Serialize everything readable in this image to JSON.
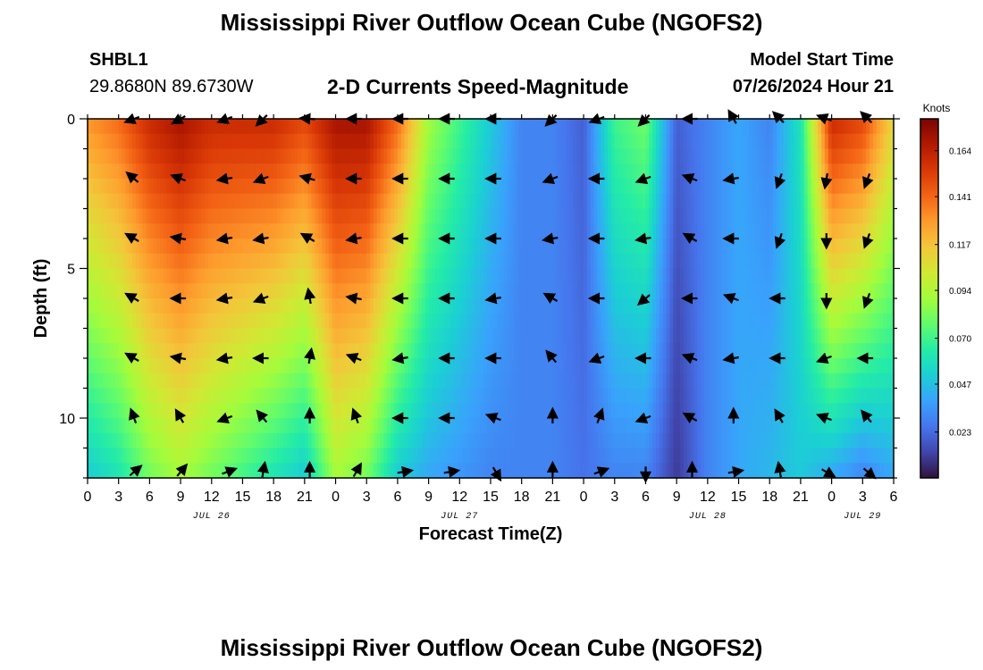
{
  "header": {
    "title": "Mississippi River Outflow Ocean Cube (NGOFS2)",
    "station_id": "SHBL1",
    "station_coords": "29.8680N  89.6730W",
    "model_start_label": "Model Start Time",
    "model_start_value": "07/26/2024 Hour 21"
  },
  "footer": {
    "title": "Mississippi River Outflow Ocean Cube (NGOFS2)"
  },
  "colors": {
    "colormap": [
      "#30123b",
      "#4145ab",
      "#4675ed",
      "#39a2fc",
      "#1bcfd4",
      "#24eca6",
      "#61fc6c",
      "#a4fc3b",
      "#d1e834",
      "#f3c63a",
      "#fe9b2d",
      "#f36315",
      "#d93806",
      "#b11901",
      "#7a0403"
    ]
  },
  "chart_data": {
    "type": "heatmap",
    "title": "2-D Currents Speed-Magnitude",
    "xlabel": "Forecast Time(Z)",
    "ylabel": "Depth (ft)",
    "x_tick_labels": [
      "0",
      "3",
      "6",
      "9",
      "12",
      "15",
      "18",
      "21",
      "0",
      "3",
      "6",
      "9",
      "12",
      "15",
      "18",
      "21",
      "0",
      "3",
      "6",
      "9",
      "12",
      "15",
      "18",
      "21",
      "0",
      "3",
      "6"
    ],
    "x_range_hours": [
      0,
      78
    ],
    "date_labels": [
      {
        "text": "JUL 26",
        "hour": 12
      },
      {
        "text": "JUL 27",
        "hour": 36
      },
      {
        "text": "JUL 28",
        "hour": 60
      },
      {
        "text": "JUL 29",
        "hour": 75
      }
    ],
    "y_tick_labels": [
      "0",
      "5",
      "10"
    ],
    "y_tick_values": [
      0,
      5,
      10
    ],
    "ylim": [
      0,
      12
    ],
    "colorbar": {
      "label": "Knots",
      "range": [
        0.0,
        0.18
      ],
      "ticks": [
        0.023,
        0.047,
        0.07,
        0.094,
        0.117,
        0.141,
        0.164
      ],
      "tick_labels": [
        "0.023",
        "0.047",
        "0.070",
        "0.094",
        "0.117",
        "0.141",
        "0.164"
      ]
    },
    "speed_time_hours": [
      0,
      3,
      6,
      9,
      12,
      15,
      18,
      21,
      24,
      27,
      30,
      33,
      36,
      39,
      42,
      45,
      48,
      51,
      54,
      57,
      60,
      63,
      66,
      69,
      72,
      75,
      78
    ],
    "speed_surface": [
      0.13,
      0.14,
      0.16,
      0.17,
      0.16,
      0.16,
      0.16,
      0.15,
      0.17,
      0.17,
      0.14,
      0.09,
      0.07,
      0.05,
      0.03,
      0.03,
      0.02,
      0.07,
      0.08,
      0.02,
      0.03,
      0.04,
      0.03,
      0.06,
      0.16,
      0.15,
      0.11
    ],
    "speed_bottom": [
      0.05,
      0.06,
      0.08,
      0.09,
      0.08,
      0.07,
      0.06,
      0.05,
      0.09,
      0.08,
      0.05,
      0.04,
      0.035,
      0.03,
      0.03,
      0.03,
      0.025,
      0.03,
      0.03,
      0.01,
      0.03,
      0.04,
      0.045,
      0.05,
      0.04,
      0.03,
      0.04
    ],
    "depth_shape": [
      0.0,
      0.12,
      0.25,
      0.37,
      0.5,
      0.62,
      0.75,
      0.87,
      1.0
    ],
    "arrow_depths_ft": [
      0,
      2,
      4,
      6,
      8,
      10,
      11.8
    ],
    "arrow_times_hours": [
      4.5,
      9,
      13.5,
      17,
      21.5,
      26,
      30.5,
      35,
      39.5,
      45,
      49.5,
      54,
      58.5,
      62.5,
      67,
      71.5,
      75.5
    ],
    "arrow_angles_deg": [
      [
        200,
        210,
        200,
        225,
        175,
        180,
        180,
        180,
        180,
        225,
        200,
        225,
        180,
        120,
        135,
        160,
        135
      ],
      [
        140,
        160,
        190,
        200,
        165,
        180,
        180,
        180,
        180,
        200,
        180,
        200,
        160,
        190,
        250,
        260,
        250
      ],
      [
        150,
        170,
        190,
        190,
        150,
        190,
        180,
        180,
        180,
        190,
        180,
        190,
        150,
        180,
        250,
        270,
        250
      ],
      [
        150,
        180,
        190,
        200,
        100,
        170,
        180,
        180,
        190,
        150,
        180,
        220,
        180,
        160,
        180,
        270,
        250
      ],
      [
        150,
        170,
        190,
        180,
        80,
        160,
        190,
        180,
        180,
        130,
        200,
        180,
        160,
        190,
        180,
        200,
        180
      ],
      [
        110,
        120,
        200,
        130,
        90,
        110,
        180,
        180,
        160,
        90,
        70,
        200,
        150,
        90,
        120,
        160,
        130
      ],
      [
        40,
        50,
        20,
        80,
        90,
        60,
        10,
        10,
        300,
        90,
        20,
        270,
        90,
        10,
        100,
        330,
        320
      ]
    ]
  }
}
